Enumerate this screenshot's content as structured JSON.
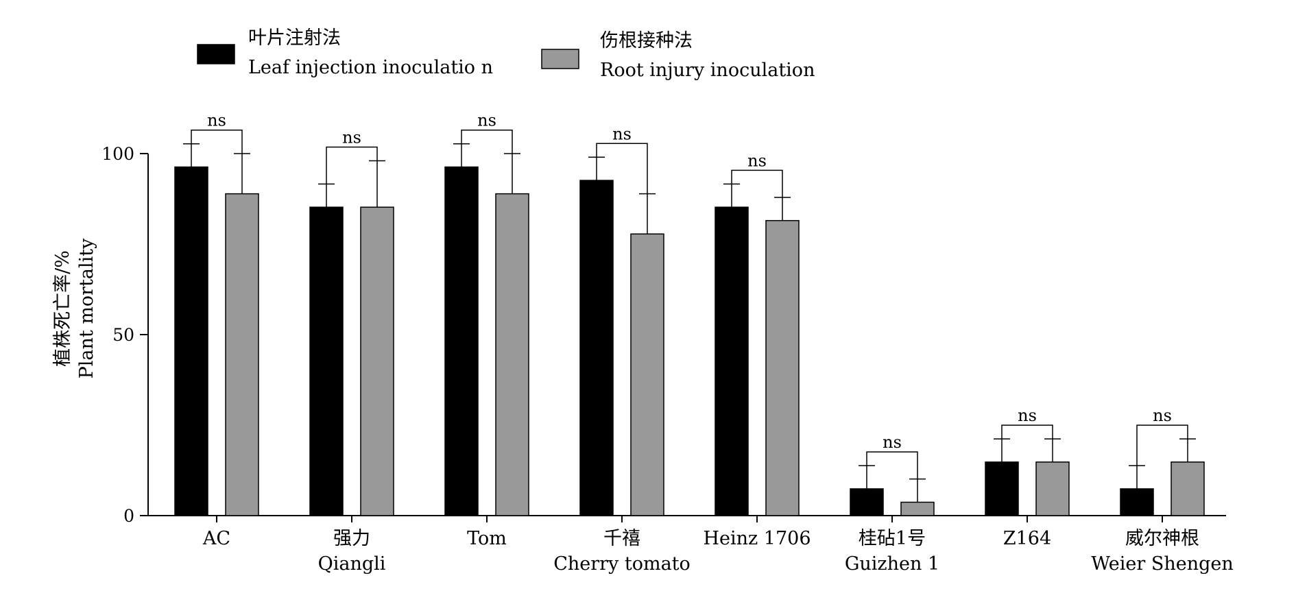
{
  "chart_data": {
    "type": "bar",
    "ylabel_cn": "植株死亡率/%",
    "ylabel_en": "Plant mortality",
    "ylim": [
      0,
      100
    ],
    "yticks": [
      0,
      50,
      100
    ],
    "categories": [
      {
        "cn": "AC",
        "en": ""
      },
      {
        "cn": "强力",
        "en": "Qiangli"
      },
      {
        "cn": "Tom",
        "en": ""
      },
      {
        "cn": "千禧",
        "en": "Cherry tomato"
      },
      {
        "cn": "Heinz 1706",
        "en": ""
      },
      {
        "cn": "桂砧1号",
        "en": "Guizhen 1"
      },
      {
        "cn": "Z164",
        "en": ""
      },
      {
        "cn": "威尔神根",
        "en": "Weier Shengen"
      }
    ],
    "series": [
      {
        "name_cn": "叶片注射法",
        "name_en": "Leaf injection inoculatio n",
        "color": "#000000",
        "values": [
          96.3,
          85.2,
          96.3,
          92.6,
          85.2,
          7.4,
          14.8,
          7.4
        ],
        "errors": [
          6.4,
          6.4,
          6.4,
          6.4,
          6.4,
          6.4,
          6.4,
          6.4
        ]
      },
      {
        "name_cn": "伤根接种法",
        "name_en": "Root injury inoculation",
        "color": "#999999",
        "values": [
          88.9,
          85.2,
          88.9,
          77.8,
          81.5,
          3.7,
          14.8,
          14.8
        ],
        "errors": [
          11.1,
          12.8,
          11.1,
          11.1,
          6.4,
          6.4,
          6.4,
          6.4
        ]
      }
    ],
    "significance": [
      "ns",
      "ns",
      "ns",
      "ns",
      "ns",
      "ns",
      "ns",
      "ns"
    ]
  }
}
